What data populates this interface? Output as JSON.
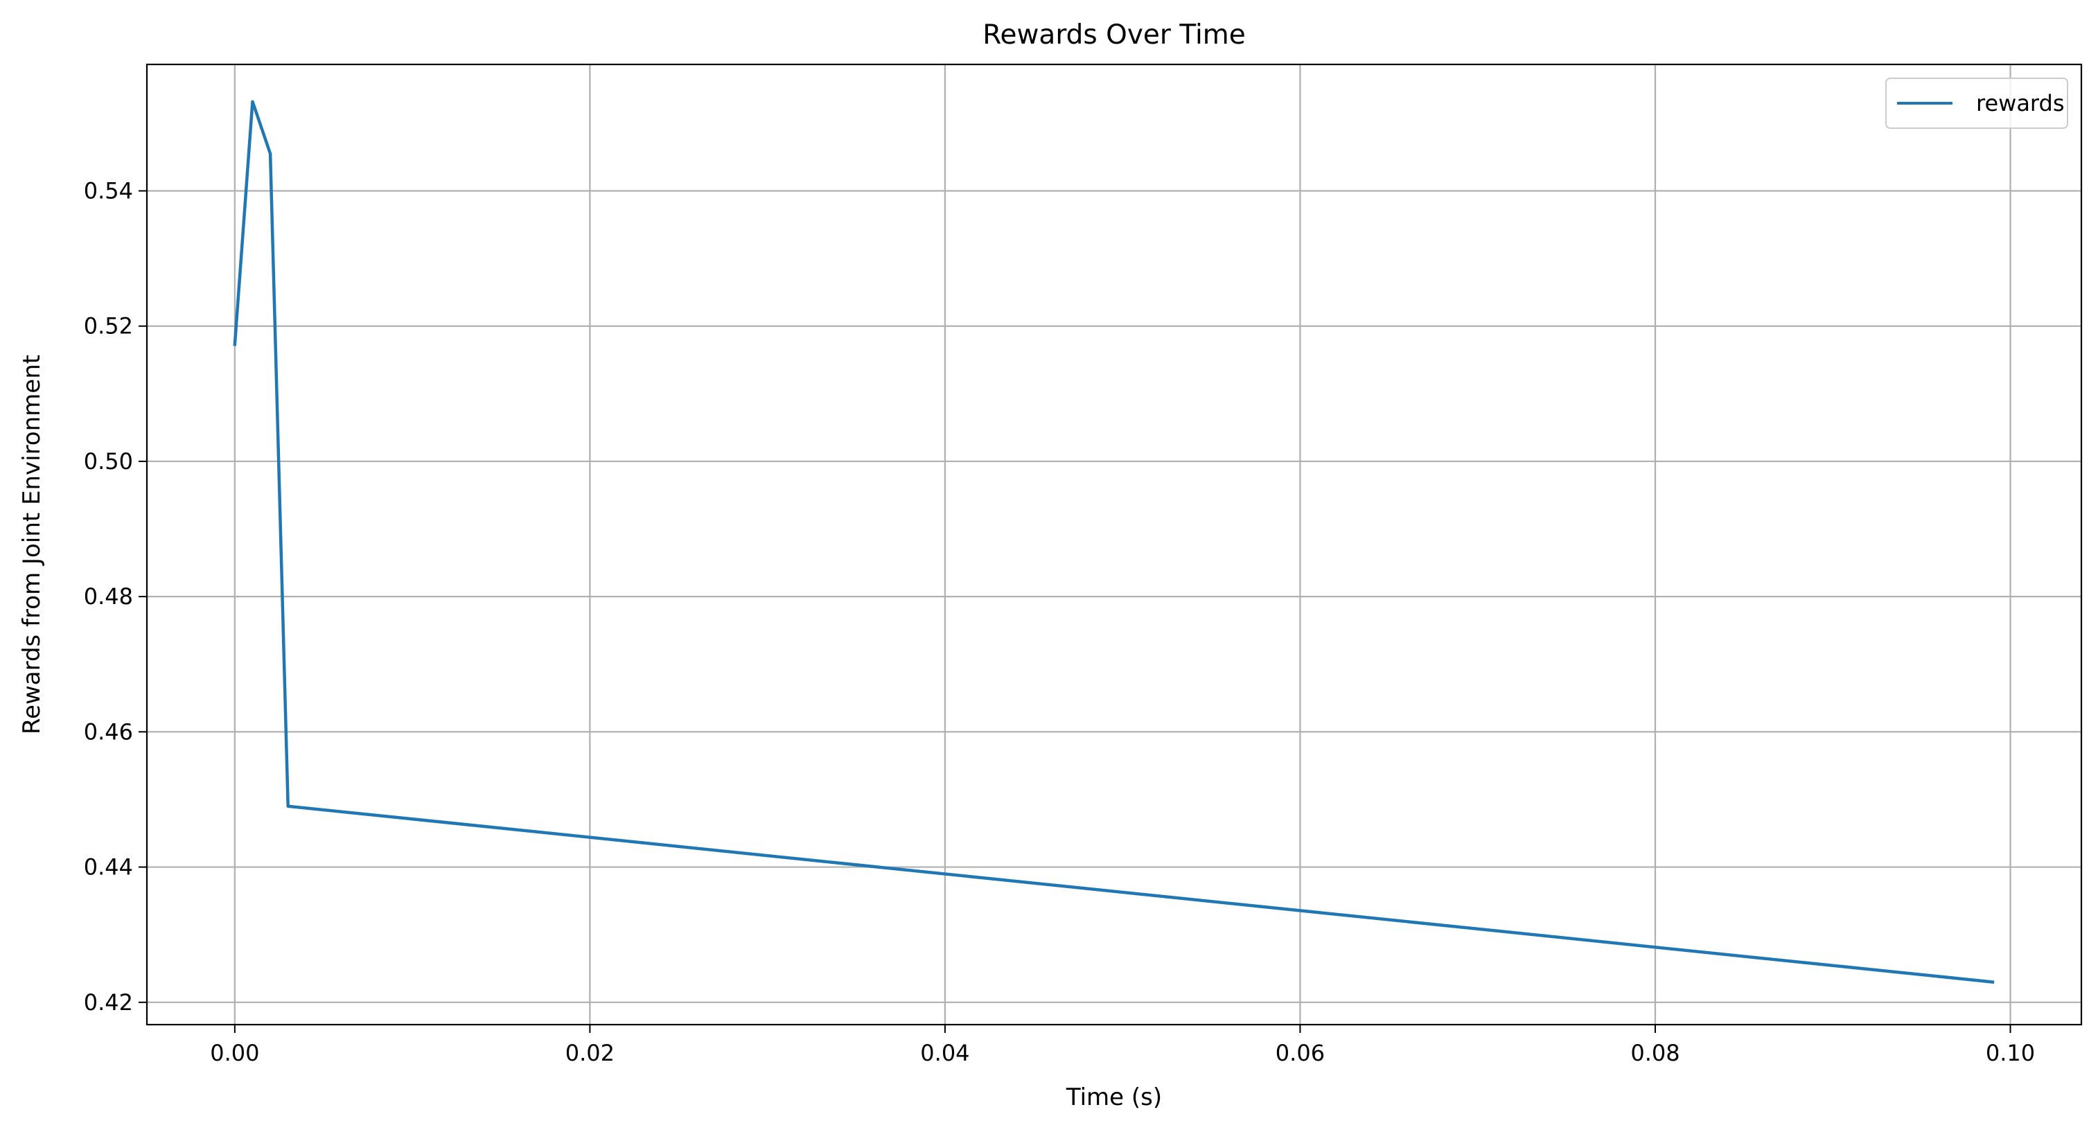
{
  "chart_data": {
    "type": "line",
    "title": "Rewards Over Time",
    "xlabel": "Time (s)",
    "ylabel": "Rewards from Joint Environment",
    "xlim": [
      -0.00495,
      0.104
    ],
    "ylim": [
      0.4167,
      0.5587
    ],
    "xticks": [
      0.0,
      0.02,
      0.04,
      0.06,
      0.08,
      0.1
    ],
    "xtick_labels": [
      "0.00",
      "0.02",
      "0.04",
      "0.06",
      "0.08",
      "0.10"
    ],
    "yticks": [
      0.42,
      0.44,
      0.46,
      0.48,
      0.5,
      0.52,
      0.54
    ],
    "ytick_labels": [
      "0.42",
      "0.44",
      "0.46",
      "0.48",
      "0.50",
      "0.52",
      "0.54"
    ],
    "grid": true,
    "legend_position": "top-right",
    "series": [
      {
        "name": "rewards",
        "color": "#1f77b4",
        "x": [
          0.0,
          0.001,
          0.002,
          0.003,
          0.099
        ],
        "y": [
          0.5173,
          0.5532,
          0.5455,
          0.449,
          0.423
        ]
      }
    ]
  }
}
